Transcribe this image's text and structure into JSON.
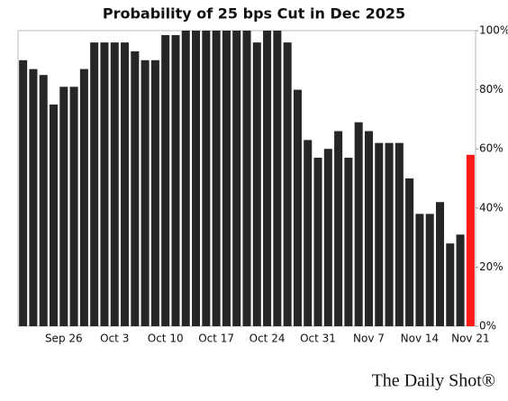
{
  "chart_data": {
    "type": "bar",
    "title": "Probability of 25 bps Cut in Dec 2025",
    "source": "The Daily Shot®",
    "categories": [
      null,
      null,
      null,
      null,
      "Sep 26",
      null,
      null,
      null,
      null,
      "Oct 3",
      null,
      null,
      null,
      null,
      "Oct 10",
      null,
      null,
      null,
      null,
      "Oct 17",
      null,
      null,
      null,
      null,
      "Oct 24",
      null,
      null,
      null,
      null,
      "Oct 31",
      null,
      null,
      null,
      null,
      "Nov 7",
      null,
      null,
      null,
      null,
      "Nov 14",
      null,
      null,
      null,
      null,
      "Nov 21"
    ],
    "values": [
      90,
      87,
      85,
      75,
      81,
      81,
      87,
      96,
      96,
      96,
      96,
      93,
      90,
      90,
      98.5,
      98.5,
      100,
      100,
      100,
      100,
      100,
      100,
      100,
      96,
      100,
      100,
      96,
      80,
      63,
      57,
      60,
      66,
      57,
      69,
      66,
      62,
      62,
      62,
      50,
      38,
      38,
      42,
      28,
      31,
      58
    ],
    "colors": [
      "#262626",
      "#262626",
      "#262626",
      "#262626",
      "#262626",
      "#262626",
      "#262626",
      "#262626",
      "#262626",
      "#262626",
      "#262626",
      "#262626",
      "#262626",
      "#262626",
      "#262626",
      "#262626",
      "#262626",
      "#262626",
      "#262626",
      "#262626",
      "#262626",
      "#262626",
      "#262626",
      "#262626",
      "#262626",
      "#262626",
      "#262626",
      "#262626",
      "#262626",
      "#262626",
      "#262626",
      "#262626",
      "#262626",
      "#262626",
      "#262626",
      "#262626",
      "#262626",
      "#262626",
      "#262626",
      "#262626",
      "#262626",
      "#262626",
      "#262626",
      "#262626",
      "#ff1a1a"
    ],
    "ylim": [
      0,
      100
    ],
    "yticks": [
      {
        "value": 0,
        "label": "0%"
      },
      {
        "value": 20,
        "label": "20%"
      },
      {
        "value": 40,
        "label": "40%"
      },
      {
        "value": 60,
        "label": "60%"
      },
      {
        "value": 80,
        "label": "80%"
      },
      {
        "value": 100,
        "label": "100%"
      }
    ],
    "y_axis_side": "right",
    "grid": false
  }
}
